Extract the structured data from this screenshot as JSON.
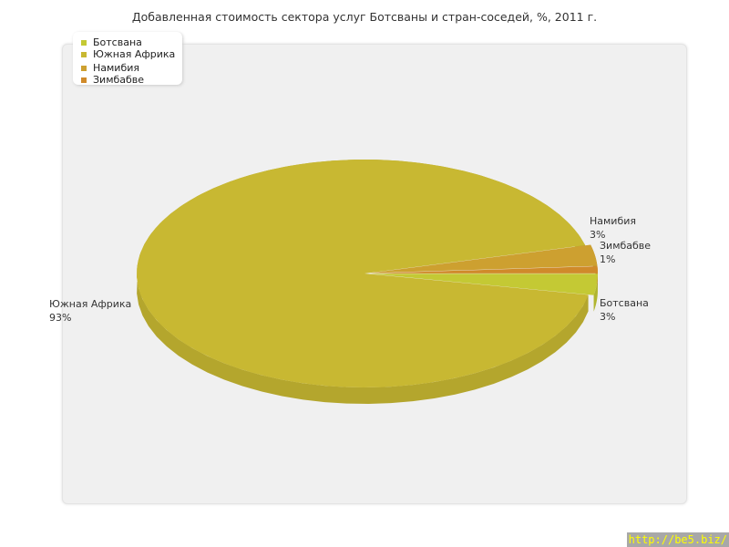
{
  "title": "Добавленная стоимость сектора услуг Ботсваны и стран-соседей, %, 2011 г.",
  "chart_data": {
    "type": "pie",
    "title": "Добавленная стоимость сектора услуг Ботсваны и стран-соседей, %, 2011 г.",
    "legend_position": "top-left",
    "slices": [
      {
        "name": "Ботсвана",
        "value": 3,
        "label": "3%",
        "color": "#c4c934"
      },
      {
        "name": "Южная Африка",
        "value": 93,
        "label": "93%",
        "color": "#c8b832"
      },
      {
        "name": "Намибия",
        "value": 3,
        "label": "3%",
        "color": "#cda030"
      },
      {
        "name": "Зимбабве",
        "value": 1,
        "label": "1%",
        "color": "#d08a2a"
      }
    ]
  },
  "watermark": "http://be5.biz/"
}
